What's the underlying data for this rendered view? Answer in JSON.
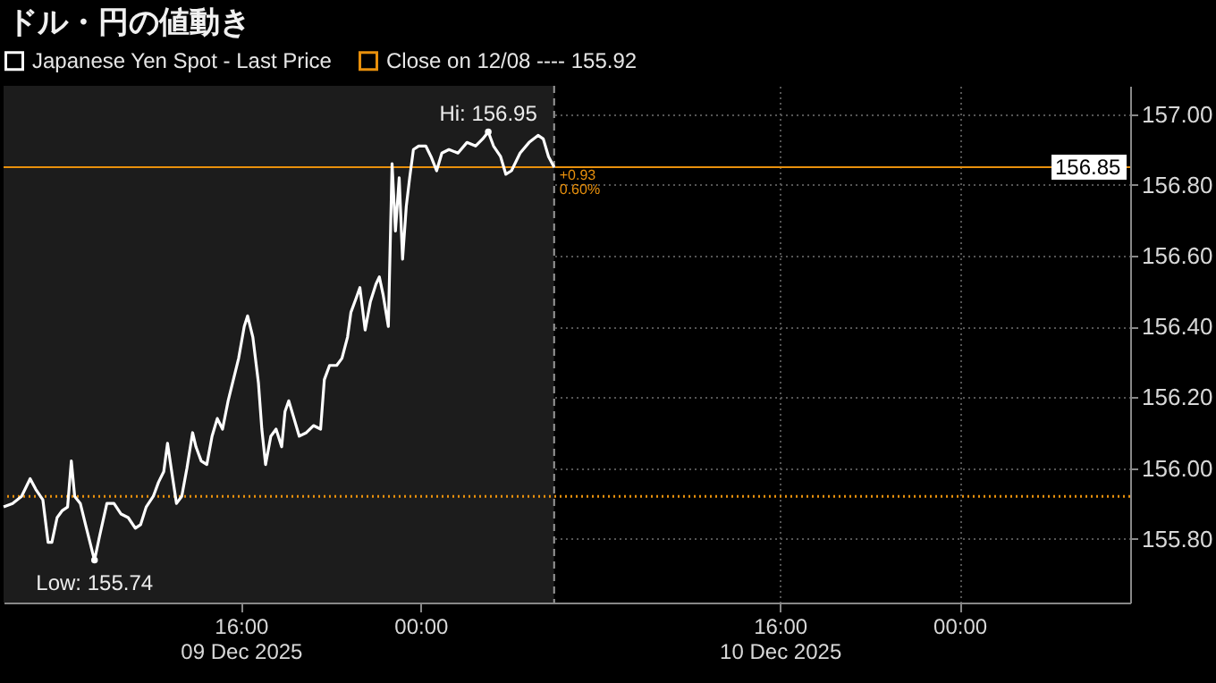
{
  "chart_data": {
    "type": "line",
    "title": "ドル・円の値動き",
    "x": [
      "2025-12-09T05:26",
      "2025-12-09T05:50",
      "2025-12-09T06:14",
      "2025-12-09T06:37",
      "2025-12-09T06:52",
      "2025-12-09T07:11",
      "2025-12-09T07:25",
      "2025-12-09T07:35",
      "2025-12-09T07:49",
      "2025-12-09T08:03",
      "2025-12-09T08:17",
      "2025-12-09T08:27",
      "2025-12-09T08:36",
      "2025-12-09T08:51",
      "2025-12-09T09:05",
      "2025-12-09T09:24",
      "2025-12-09T09:29",
      "2025-12-09T09:43",
      "2025-12-09T10:02",
      "2025-12-09T10:21",
      "2025-12-09T10:40",
      "2025-12-09T10:59",
      "2025-12-09T11:18",
      "2025-12-09T11:32",
      "2025-12-09T11:47",
      "2025-12-09T12:06",
      "2025-12-09T12:20",
      "2025-12-09T12:34",
      "2025-12-09T12:44",
      "2025-12-09T12:58",
      "2025-12-09T13:08",
      "2025-12-09T13:22",
      "2025-12-09T13:36",
      "2025-12-09T13:51",
      "2025-12-09T14:00",
      "2025-12-09T14:14",
      "2025-12-09T14:29",
      "2025-12-09T14:43",
      "2025-12-09T14:57",
      "2025-12-09T15:11",
      "2025-12-09T15:26",
      "2025-12-09T15:40",
      "2025-12-09T15:54",
      "2025-12-09T16:09",
      "2025-12-09T16:18",
      "2025-12-09T16:32",
      "2025-12-09T16:47",
      "2025-12-09T16:56",
      "2025-12-09T17:06",
      "2025-12-09T17:20",
      "2025-12-09T17:34",
      "2025-12-09T17:49",
      "2025-12-09T17:58",
      "2025-12-09T18:08",
      "2025-12-09T18:22",
      "2025-12-09T18:36",
      "2025-12-09T18:55",
      "2025-12-09T19:14",
      "2025-12-09T19:33",
      "2025-12-09T19:43",
      "2025-12-09T19:57",
      "2025-12-09T20:16",
      "2025-12-09T20:30",
      "2025-12-09T20:45",
      "2025-12-09T20:54",
      "2025-12-09T21:08",
      "2025-12-09T21:18",
      "2025-12-09T21:32",
      "2025-12-09T21:46",
      "2025-12-09T22:01",
      "2025-12-09T22:10",
      "2025-12-09T22:20",
      "2025-12-09T22:34",
      "2025-12-09T22:44",
      "2025-12-09T22:53",
      "2025-12-09T23:03",
      "2025-12-09T23:12",
      "2025-12-09T23:22",
      "2025-12-09T23:31",
      "2025-12-09T23:41",
      "2025-12-09T23:55",
      "2025-12-10T00:14",
      "2025-12-10T00:28",
      "2025-12-10T00:43",
      "2025-12-10T00:57",
      "2025-12-10T01:16",
      "2025-12-10T01:40",
      "2025-12-10T02:04",
      "2025-12-10T02:27",
      "2025-12-10T02:46",
      "2025-12-10T03:01",
      "2025-12-10T03:15",
      "2025-12-10T03:34",
      "2025-12-10T03:48",
      "2025-12-10T04:03",
      "2025-12-10T04:26",
      "2025-12-10T04:50",
      "2025-12-10T05:14",
      "2025-12-10T05:28",
      "2025-12-10T05:42",
      "2025-12-10T05:57"
    ],
    "series": [
      {
        "name": "Japanese Yen Spot - Last Price",
        "color": "#ffffff",
        "values": [
          155.89,
          155.9,
          155.92,
          155.97,
          155.94,
          155.91,
          155.79,
          155.79,
          155.86,
          155.88,
          155.89,
          156.02,
          155.92,
          155.9,
          155.84,
          155.76,
          155.74,
          155.81,
          155.9,
          155.9,
          155.87,
          155.86,
          155.83,
          155.84,
          155.89,
          155.92,
          155.96,
          155.99,
          156.07,
          155.97,
          155.9,
          155.92,
          156.0,
          156.1,
          156.06,
          156.02,
          156.01,
          156.09,
          156.14,
          156.11,
          156.19,
          156.25,
          156.31,
          156.4,
          156.43,
          156.37,
          156.24,
          156.11,
          156.01,
          156.09,
          156.11,
          156.06,
          156.16,
          156.19,
          156.14,
          156.09,
          156.1,
          156.12,
          156.11,
          156.25,
          156.29,
          156.29,
          156.31,
          156.37,
          156.44,
          156.48,
          156.51,
          156.39,
          156.47,
          156.52,
          156.54,
          156.49,
          156.4,
          156.86,
          156.67,
          156.82,
          156.59,
          156.74,
          156.82,
          156.9,
          156.91,
          156.91,
          156.88,
          156.84,
          156.89,
          156.9,
          156.89,
          156.92,
          156.91,
          156.93,
          156.95,
          156.91,
          156.88,
          156.83,
          156.84,
          156.89,
          156.92,
          156.94,
          156.93,
          156.88,
          156.85
        ]
      }
    ],
    "xlim": [
      "2025-12-09T05:26",
      "2025-12-11T07:36"
    ],
    "xticks": [
      {
        "value": "2025-12-09T16:00",
        "label": "16:00\n09 Dec 2025"
      },
      {
        "value": "2025-12-10T00:00",
        "label": "00:00"
      },
      {
        "value": "2025-12-10T16:00",
        "label": "16:00\n10 Dec 2025"
      },
      {
        "value": "2025-12-11T00:00",
        "label": "00:00"
      }
    ],
    "ylim": [
      155.62,
      157.08
    ],
    "yticks": [
      {
        "value": 155.8,
        "label": "155.80"
      },
      {
        "value": 156,
        "label": "156.00"
      },
      {
        "value": 156.2,
        "label": "156.20"
      },
      {
        "value": 156.4,
        "label": "156.40"
      },
      {
        "value": 156.6,
        "label": "156.60"
      },
      {
        "value": 156.8,
        "label": "156.80"
      },
      {
        "value": 157,
        "label": "157.00"
      }
    ],
    "ref_lines": [
      {
        "axis": "y",
        "value": 155.92,
        "label": "Close on 12/08 ---- 155.92",
        "color": "#e8900c",
        "line_style": "dotted"
      },
      {
        "axis": "y",
        "value": 156.85,
        "label": "156.85",
        "color": "#e8900c",
        "line_style": "solid"
      },
      {
        "axis": "x",
        "value": "2025-12-10T05:57",
        "color": "#9a9a9a",
        "line_style": "dashed"
      }
    ],
    "bands": [
      {
        "axis": "x",
        "from": "2025-12-09T05:26",
        "to": "2025-12-10T05:57",
        "color": "#1c1c1c"
      }
    ],
    "annotations": [
      {
        "text": "Hi: 156.95",
        "x": "2025-12-10T03:01",
        "y": 156.95
      },
      {
        "text": "Low: 155.74",
        "x": "2025-12-09T09:29",
        "y": 155.74
      },
      {
        "text": "+0.93",
        "x": "2025-12-10T05:57",
        "y": 156.85
      },
      {
        "text": "0.60%",
        "x": "2025-12-10T05:57",
        "y": 156.85
      }
    ],
    "grid": true,
    "legend": "top left",
    "marker": "none",
    "line_style": "solid"
  }
}
